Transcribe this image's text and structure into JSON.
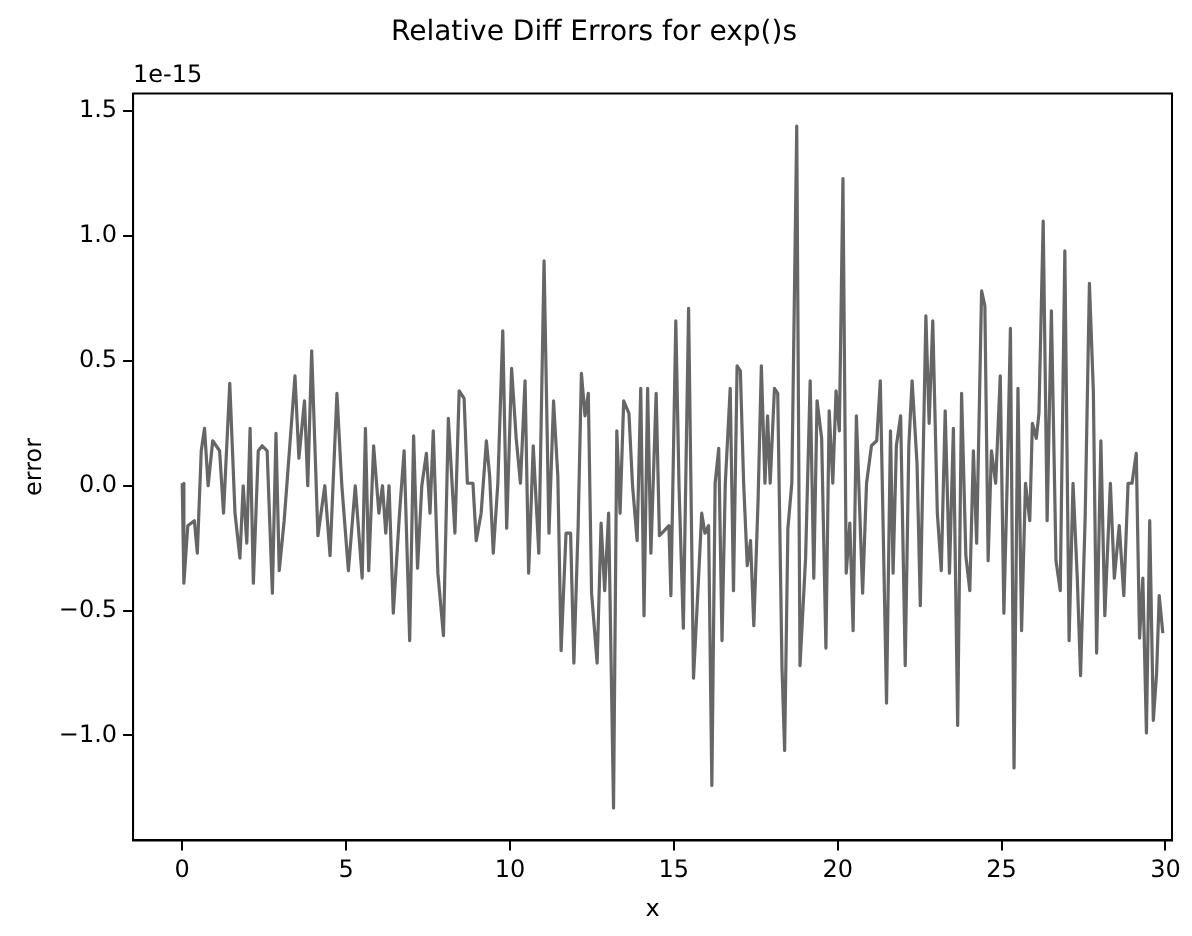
{
  "chart_data": {
    "type": "line",
    "title": "Relative Diff Errors for exp()s",
    "xlabel": "x",
    "ylabel": "error",
    "annotations": [
      "1e-15"
    ],
    "xlim": [
      -1.5,
      30.2
    ],
    "xticks": [
      0,
      5,
      10,
      15,
      20,
      25,
      30
    ],
    "ylim": [
      -1.42,
      1.57
    ],
    "yticks": [
      {
        "value": -1.0,
        "label": "−1.0"
      },
      {
        "value": -0.5,
        "label": "−0.5"
      },
      {
        "value": 0,
        "label": "0.0"
      },
      {
        "value": 0.5,
        "label": "0.5"
      },
      {
        "value": 1.0,
        "label": "1.0"
      },
      {
        "value": 1.5,
        "label": "1.5"
      }
    ],
    "grid": false,
    "legend": false,
    "marker": "none",
    "line_style": "solid",
    "series": [
      {
        "color": "#666666",
        "x": [
          0,
          0.05,
          0.17,
          0.37,
          0.46,
          0.58,
          0.68,
          0.79,
          0.93,
          1.14,
          1.26,
          1.45,
          1.61,
          1.76,
          1.86,
          1.97,
          2.07,
          2.17,
          2.32,
          2.44,
          2.59,
          2.75,
          2.86,
          2.96,
          3.11,
          3.27,
          3.44,
          3.56,
          3.73,
          3.83,
          3.95,
          4.14,
          4.35,
          4.51,
          4.72,
          4.87,
          5.07,
          5.28,
          5.49,
          5.59,
          5.69,
          5.84,
          6.0,
          6.11,
          6.21,
          6.31,
          6.44,
          6.63,
          6.77,
          6.94,
          7.06,
          7.18,
          7.31,
          7.45,
          7.56,
          7.66,
          7.8,
          7.97,
          8.12,
          8.32,
          8.45,
          8.6,
          8.7,
          8.87,
          8.97,
          9.12,
          9.28,
          9.38,
          9.49,
          9.63,
          9.78,
          9.9,
          10.05,
          10.19,
          10.32,
          10.46,
          10.57,
          10.71,
          10.88,
          11.04,
          11.19,
          11.33,
          11.46,
          11.56,
          11.71,
          11.85,
          11.95,
          12.08,
          12.18,
          12.29,
          12.39,
          12.49,
          12.66,
          12.78,
          12.89,
          13.01,
          13.16,
          13.26,
          13.36,
          13.47,
          13.63,
          13.74,
          13.88,
          13.99,
          14.09,
          14.2,
          14.3,
          14.46,
          14.56,
          14.71,
          14.85,
          14.91,
          15.06,
          15.16,
          15.29,
          15.45,
          15.6,
          15.75,
          15.85,
          15.95,
          16.06,
          16.16,
          16.26,
          16.37,
          16.47,
          16.57,
          16.72,
          16.82,
          16.93,
          17.03,
          17.13,
          17.24,
          17.34,
          17.44,
          17.57,
          17.67,
          17.78,
          17.86,
          17.94,
          18.07,
          18.17,
          18.3,
          18.38,
          18.48,
          18.6,
          18.75,
          18.85,
          19.02,
          19.16,
          19.27,
          19.37,
          19.51,
          19.64,
          19.74,
          19.85,
          19.95,
          20.05,
          20.16,
          20.26,
          20.37,
          20.47,
          20.57,
          20.76,
          20.88,
          21.03,
          21.19,
          21.3,
          21.49,
          21.61,
          21.69,
          21.79,
          21.92,
          22.06,
          22.17,
          22.27,
          22.42,
          22.52,
          22.69,
          22.79,
          22.9,
          23.04,
          23.16,
          23.28,
          23.41,
          23.53,
          23.66,
          23.78,
          23.91,
          24.03,
          24.14,
          24.24,
          24.39,
          24.49,
          24.59,
          24.69,
          24.82,
          24.96,
          25.07,
          25.17,
          25.27,
          25.38,
          25.5,
          25.61,
          25.73,
          25.86,
          25.94,
          26.06,
          26.14,
          26.27,
          26.39,
          26.52,
          26.66,
          26.79,
          26.93,
          27.06,
          27.18,
          27.31,
          27.41,
          27.55,
          27.68,
          27.8,
          27.9,
          28.03,
          28.15,
          28.32,
          28.44,
          28.59,
          28.73,
          28.86,
          28.98,
          29.11,
          29.21,
          29.31,
          29.42,
          29.52,
          29.63,
          29.73,
          29.81,
          29.92
        ],
        "values": [
          0.01,
          -0.39,
          -0.16,
          -0.14,
          -0.27,
          0.14,
          0.23,
          0,
          0.18,
          0.14,
          -0.11,
          0.41,
          -0.11,
          -0.29,
          0,
          -0.23,
          0.23,
          -0.39,
          0.14,
          0.16,
          0.14,
          -0.43,
          0.21,
          -0.34,
          -0.14,
          0.14,
          0.44,
          0.11,
          0.34,
          0,
          0.54,
          -0.2,
          0,
          -0.28,
          0.37,
          0,
          -0.34,
          0,
          -0.37,
          0.23,
          -0.34,
          0.16,
          -0.11,
          0,
          -0.19,
          0,
          -0.51,
          -0.11,
          0.14,
          -0.62,
          0.2,
          -0.33,
          0,
          0.13,
          -0.11,
          0.22,
          -0.35,
          -0.6,
          0.27,
          -0.19,
          0.38,
          0.35,
          0.01,
          0.01,
          -0.22,
          -0.11,
          0.18,
          0.04,
          -0.27,
          0.01,
          0.62,
          -0.17,
          0.47,
          0.19,
          0.01,
          0.42,
          -0.35,
          0.16,
          -0.27,
          0.9,
          -0.19,
          0.34,
          0.04,
          -0.66,
          -0.19,
          -0.19,
          -0.71,
          -0.16,
          0.45,
          0.28,
          0.37,
          -0.43,
          -0.71,
          -0.15,
          -0.42,
          -0.11,
          -1.29,
          0.22,
          -0.11,
          0.34,
          0.29,
          0,
          -0.22,
          0.39,
          -0.52,
          0.39,
          -0.27,
          0.37,
          -0.2,
          -0.18,
          -0.16,
          -0.44,
          0.66,
          -0.01,
          -0.57,
          0.71,
          -0.77,
          -0.38,
          -0.11,
          -0.19,
          -0.16,
          -1.2,
          0.01,
          0.15,
          -0.62,
          0.01,
          0.39,
          -0.42,
          0.48,
          0.46,
          0.01,
          -0.32,
          -0.22,
          -0.56,
          -0.06,
          0.48,
          0.01,
          0.28,
          0.01,
          0.39,
          0.37,
          -0.73,
          -1.06,
          -0.17,
          0.01,
          1.44,
          -0.72,
          -0.29,
          0.42,
          -0.37,
          0.34,
          0.19,
          -0.65,
          0.3,
          0.01,
          0.38,
          0.22,
          1.23,
          -0.35,
          -0.15,
          -0.58,
          0.28,
          -0.43,
          0.01,
          0.16,
          0.18,
          0.42,
          -0.87,
          0.22,
          -0.35,
          0.16,
          0.28,
          -0.72,
          0.16,
          0.42,
          0.09,
          -0.48,
          0.68,
          0.25,
          0.66,
          -0.11,
          -0.34,
          0.3,
          -0.35,
          0.23,
          -0.96,
          0.37,
          -0.28,
          -0.42,
          0.14,
          -0.23,
          0.78,
          0.72,
          -0.3,
          0.14,
          0.01,
          0.44,
          -0.51,
          0.01,
          0.63,
          -1.13,
          0.39,
          -0.58,
          0.01,
          -0.14,
          0.25,
          0.19,
          0.29,
          1.06,
          -0.14,
          0.7,
          -0.3,
          -0.42,
          0.94,
          -0.62,
          0.01,
          -0.37,
          -0.76,
          -0.13,
          0.81,
          0.38,
          -0.67,
          0.18,
          -0.52,
          0.01,
          -0.37,
          -0.16,
          -0.44,
          0.01,
          0.01,
          0.13,
          -0.61,
          -0.37,
          -0.99,
          -0.14,
          -0.94,
          -0.75,
          -0.44,
          -0.59
        ]
      }
    ]
  }
}
